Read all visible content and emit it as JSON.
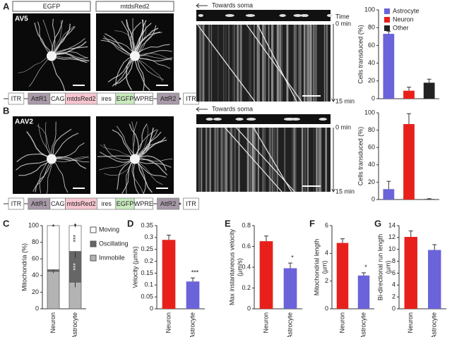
{
  "figure": {
    "panels": [
      "A",
      "B",
      "C",
      "D",
      "E",
      "F",
      "G"
    ],
    "channels": [
      "EGFP",
      "mtdsRed2"
    ],
    "row_a": {
      "virus": "AV5",
      "construct": [
        "ITR",
        "AttR1",
        "CAG",
        "mtdsRed2",
        "ires",
        "EGFP",
        "WPRE",
        "AttR2",
        "ITR"
      ],
      "direction": "Towards soma",
      "time": "Time",
      "start": "0 min",
      "end": "15 min"
    },
    "row_b": {
      "virus": "AAV2",
      "construct": [
        "ITR",
        "AttR1",
        "CAG",
        "mtdsRed2",
        "ires",
        "EGFP",
        "WPRE",
        "AttR2",
        "ITR"
      ],
      "direction": "Towards soma",
      "start": "0 min",
      "end": "15 min"
    }
  },
  "chart_data": [
    {
      "type": "bar",
      "ylabel": "Cells transduced (%)",
      "ylim": [
        0,
        100
      ],
      "yticks": [
        0,
        20,
        40,
        60,
        80,
        100
      ],
      "legend": "upper right",
      "series": [
        {
          "name": "Astrocyte",
          "color": "#6b63d9",
          "values": [
            73
          ],
          "errors": [
            3
          ]
        },
        {
          "name": "Neuron",
          "color": "#e8201c",
          "values": [
            9
          ],
          "errors": [
            4
          ]
        },
        {
          "name": "Other",
          "color": "#222222",
          "values": [
            18
          ],
          "errors": [
            4
          ]
        }
      ]
    },
    {
      "type": "bar",
      "ylabel": "Cells transduced (%)",
      "ylim": [
        0,
        100
      ],
      "yticks": [
        0,
        20,
        40,
        60,
        80,
        100
      ],
      "series": [
        {
          "name": "Astrocyte",
          "color": "#6b63d9",
          "values": [
            12
          ],
          "errors": [
            9
          ]
        },
        {
          "name": "Neuron",
          "color": "#e8201c",
          "values": [
            87
          ],
          "errors": [
            12
          ]
        },
        {
          "name": "Other",
          "color": "#222222",
          "values": [
            0.5
          ],
          "errors": [
            0.5
          ]
        }
      ]
    },
    {
      "type": "stacked_bar",
      "ylabel": "Mitochondria (%)",
      "ylim": [
        0,
        100
      ],
      "yticks": [
        0,
        20,
        40,
        60,
        80,
        100
      ],
      "legend": "right",
      "categories": [
        "Neuron",
        "Astrocyte"
      ],
      "series": [
        {
          "name": "Immobile",
          "color": "#b3b3b3",
          "values": [
            45,
            32
          ],
          "errors": [
            2,
            6
          ],
          "annotations": [
            null,
            null
          ]
        },
        {
          "name": "Oscillating",
          "color": "#666666",
          "values": [
            2,
            37
          ],
          "errors": [
            1,
            8
          ],
          "annotations": [
            null,
            "***"
          ]
        },
        {
          "name": "Moving",
          "color": "#ffffff",
          "values": [
            53,
            31
          ],
          "errors": [
            1,
            2
          ],
          "annotations": [
            null,
            "***"
          ]
        }
      ]
    },
    {
      "type": "bar",
      "ylabel": "Velocity (µm/s)",
      "ylim": [
        0,
        0.35
      ],
      "yticks": [
        0,
        0.05,
        0.1,
        0.15,
        0.2,
        0.25,
        0.3,
        0.35
      ],
      "categories": [
        "Neuron",
        "Astrocyte"
      ],
      "colors": [
        "#e8201c",
        "#6b63d9"
      ],
      "values": [
        0.29,
        0.115
      ],
      "errors": [
        0.02,
        0.015
      ],
      "annotations": [
        null,
        "***"
      ]
    },
    {
      "type": "bar",
      "ylabel": "Max instantaneous velocity (µm/s)",
      "ylim": [
        0,
        0.8
      ],
      "yticks": [
        0,
        0.2,
        0.4,
        0.6,
        0.8
      ],
      "categories": [
        "Neuron",
        "Astrocyte"
      ],
      "colors": [
        "#e8201c",
        "#6b63d9"
      ],
      "values": [
        0.65,
        0.39
      ],
      "errors": [
        0.05,
        0.05
      ],
      "annotations": [
        null,
        "*"
      ]
    },
    {
      "type": "bar",
      "ylabel": "Mitochondrial length (µm)",
      "ylim": [
        0,
        6
      ],
      "yticks": [
        0,
        2,
        4,
        6
      ],
      "categories": [
        "Neuron",
        "Astrocyte"
      ],
      "colors": [
        "#e8201c",
        "#6b63d9"
      ],
      "values": [
        4.75,
        2.4
      ],
      "errors": [
        0.3,
        0.2
      ],
      "annotations": [
        null,
        "*"
      ]
    },
    {
      "type": "bar",
      "ylabel": "Bi-directional run length (µm)",
      "ylim": [
        0,
        14
      ],
      "yticks": [
        0,
        2,
        4,
        6,
        8,
        10,
        12,
        14
      ],
      "categories": [
        "Neuron",
        "Astrocyte"
      ],
      "colors": [
        "#e8201c",
        "#6b63d9"
      ],
      "values": [
        12.1,
        9.9
      ],
      "errors": [
        1,
        0.9
      ],
      "annotations": [
        null,
        null
      ]
    }
  ]
}
